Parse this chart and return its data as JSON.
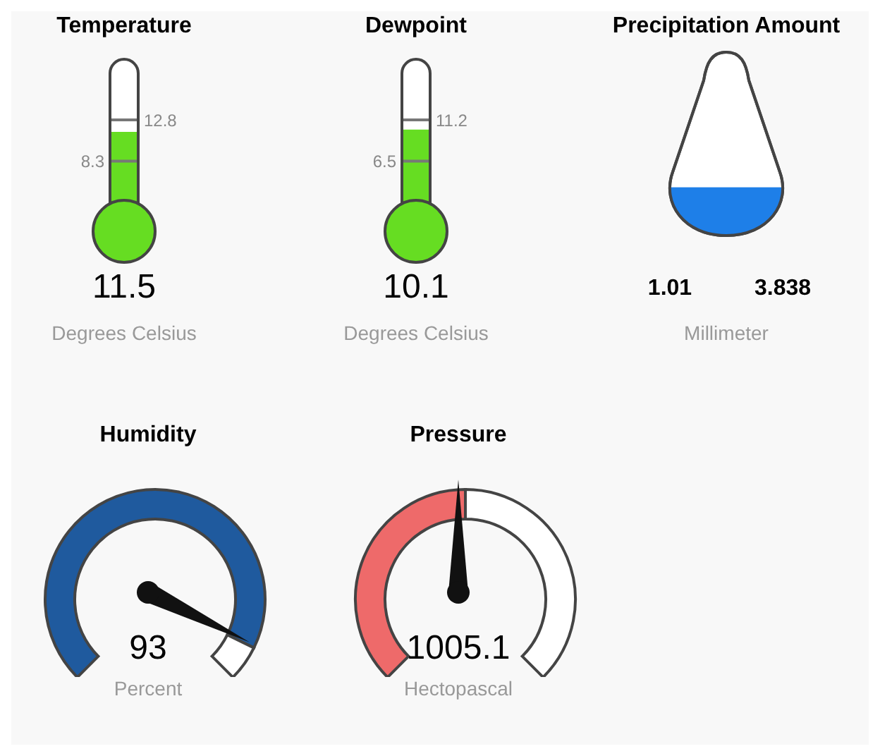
{
  "chart_data": [
    {
      "type": "other",
      "title": "Temperature",
      "values": [
        11.5
      ],
      "data_labels": true,
      "xlabel": "Degrees Celsius",
      "color": "#66dd22",
      "annotations": [
        "8.3",
        "12.8"
      ]
    },
    {
      "type": "other",
      "title": "Dewpoint",
      "values": [
        10.1
      ],
      "data_labels": true,
      "xlabel": "Degrees Celsius",
      "color": "#66dd22",
      "annotations": [
        "6.5",
        "11.2"
      ]
    },
    {
      "type": "other",
      "title": "Precipitation Amount",
      "values": [
        1.01
      ],
      "data_labels": true,
      "xlabel": "Millimeter",
      "color": "#1e7fe8",
      "annotations": [
        "3.838"
      ]
    },
    {
      "type": "donut",
      "title": "Humidity",
      "categories": [
        null,
        null
      ],
      "values": [
        93,
        7
      ],
      "colors": [
        "#1f5a9e",
        "#ffffff"
      ],
      "annotations": [
        "93"
      ],
      "xlabel": "Percent"
    },
    {
      "type": "donut",
      "title": "Pressure",
      "categories": [
        null,
        null
      ],
      "values": [
        50,
        50
      ],
      "colors": [
        "#ee6a6a",
        "#ffffff"
      ],
      "annotations": [
        "1005.1"
      ],
      "xlabel": "Hectopascal"
    }
  ]
}
